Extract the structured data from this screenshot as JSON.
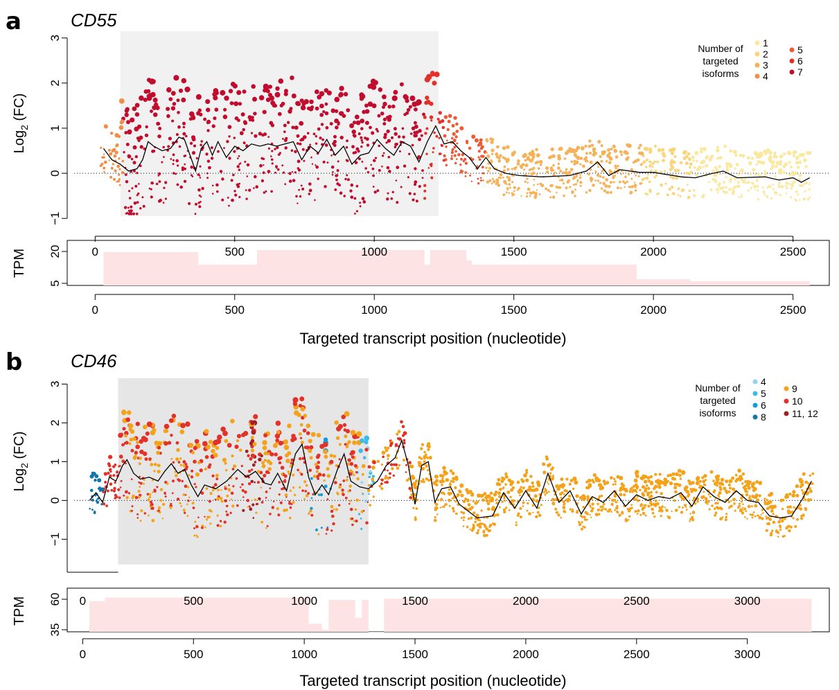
{
  "panels": [
    {
      "letter": "a",
      "gene": "CD55",
      "ylabel_main": "Log",
      "ylabel_sub": "2",
      "ylabel_tail": " (FC)",
      "tpm_label": "TPM",
      "xlabel": "Targeted transcript position (nucleotide)",
      "legend": {
        "title": [
          "Number of",
          "targeted",
          "isoforms"
        ],
        "items": [
          {
            "label": "1",
            "color": "#FBE8A0"
          },
          {
            "label": "2",
            "color": "#F9D57C"
          },
          {
            "label": "3",
            "color": "#F6B25A"
          },
          {
            "label": "4",
            "color": "#F08D47"
          },
          {
            "label": "5",
            "color": "#EC5B36"
          },
          {
            "label": "6",
            "color": "#E23128"
          },
          {
            "label": "7",
            "color": "#C10C2E"
          }
        ]
      }
    },
    {
      "letter": "b",
      "gene": "CD46",
      "ylabel_main": "Log",
      "ylabel_sub": "2",
      "ylabel_tail": " (FC)",
      "tpm_label": "TPM",
      "xlabel": "Targeted transcript position (nucleotide)",
      "legend": {
        "title": [
          "Number of",
          "targeted",
          "isoforms"
        ],
        "items": [
          {
            "label": "4",
            "color": "#8ED3F0"
          },
          {
            "label": "5",
            "color": "#3DBBE8"
          },
          {
            "label": "6",
            "color": "#119AD3"
          },
          {
            "label": "8",
            "color": "#1276A8"
          },
          {
            "label": "9",
            "color": "#F3A21A"
          },
          {
            "label": "10",
            "color": "#E23128"
          },
          {
            "label": "11, 12",
            "color": "#A21F24"
          }
        ]
      }
    }
  ],
  "chart_data": [
    {
      "type": "scatter",
      "title": "CD55",
      "xlabel": "Targeted transcript position (nucleotide)",
      "ylabel": "Log2 (FC)",
      "xlim": [
        -100,
        2630
      ],
      "ylim": [
        -1.15,
        3.15
      ],
      "xticks": [
        0,
        500,
        1000,
        1500,
        2000,
        2500
      ],
      "yticks": [
        -1,
        0,
        1,
        2,
        3
      ],
      "grid": false,
      "reference_line": {
        "y": 0,
        "style": "dotted"
      },
      "highlight_region": {
        "x": [
          90,
          1230
        ],
        "color": "#F1F1F1"
      },
      "legend_title": "Number of targeted isoforms",
      "legend_position": "top-right",
      "series": [
        {
          "name": "7",
          "color": "#C10C2E",
          "x_range": [
            100,
            1180
          ]
        },
        {
          "name": "6",
          "color": "#E23128",
          "x_range": [
            1180,
            1250
          ]
        },
        {
          "name": "5",
          "color": "#EC5B36",
          "x_range": [
            1250,
            1400
          ]
        },
        {
          "name": "4",
          "color": "#F08D47",
          "x_range": [
            20,
            100
          ]
        },
        {
          "name": "3",
          "color": "#F6B25A",
          "x_range": [
            1400,
            1960
          ]
        },
        {
          "name": "2",
          "color": "#F9D57C",
          "x_range": [
            1960,
            2140
          ]
        },
        {
          "name": "1",
          "color": "#FBE8A0",
          "x_range": [
            2140,
            2560
          ]
        }
      ],
      "trend": {
        "x": [
          30,
          60,
          90,
          120,
          150,
          170,
          190,
          210,
          240,
          270,
          300,
          320,
          340,
          360,
          380,
          400,
          420,
          440,
          470,
          500,
          530,
          560,
          590,
          620,
          650,
          680,
          710,
          740,
          770,
          800,
          830,
          860,
          890,
          920,
          950,
          980,
          1010,
          1040,
          1070,
          1100,
          1130,
          1160,
          1190,
          1220,
          1250,
          1280,
          1310,
          1340,
          1370,
          1400,
          1430,
          1470,
          1520,
          1600,
          1700,
          1760,
          1800,
          1840,
          1880,
          1950,
          2000,
          2100,
          2150,
          2200,
          2250,
          2300,
          2400,
          2450,
          2500,
          2530,
          2560
        ],
        "y": [
          0.55,
          0.3,
          0.2,
          0.05,
          0.1,
          0.3,
          0.7,
          0.6,
          0.5,
          0.55,
          0.8,
          0.75,
          0.4,
          0.05,
          0.55,
          0.7,
          0.4,
          0.7,
          0.35,
          0.6,
          0.5,
          0.65,
          0.6,
          0.65,
          0.6,
          0.65,
          0.7,
          0.3,
          0.6,
          0.45,
          0.75,
          0.4,
          0.6,
          0.2,
          0.4,
          0.45,
          0.75,
          0.55,
          0.4,
          0.7,
          0.6,
          0.25,
          0.7,
          1.05,
          0.65,
          0.7,
          0.5,
          0.35,
          0.1,
          0.35,
          0.1,
          0.0,
          -0.05,
          -0.08,
          -0.05,
          0.05,
          0.25,
          -0.05,
          0.08,
          0.02,
          0.02,
          -0.08,
          -0.1,
          -0.02,
          0.05,
          -0.1,
          -0.08,
          -0.15,
          -0.1,
          -0.2,
          -0.1
        ]
      },
      "tpm_track": {
        "ylabel": "TPM",
        "yticks": [
          5,
          20
        ],
        "xticks": [
          0,
          500,
          1000,
          1500,
          2000,
          2500
        ],
        "color": "#FDE3E3",
        "steps": [
          [
            30,
            20
          ],
          [
            370,
            20
          ],
          [
            370,
            14
          ],
          [
            580,
            14
          ],
          [
            580,
            21
          ],
          [
            1180,
            21
          ],
          [
            1180,
            14
          ],
          [
            1200,
            14
          ],
          [
            1200,
            21
          ],
          [
            1330,
            21
          ],
          [
            1330,
            16
          ],
          [
            1350,
            16
          ],
          [
            1350,
            14
          ],
          [
            1940,
            14
          ],
          [
            1940,
            7
          ],
          [
            2130,
            7
          ],
          [
            2130,
            6
          ],
          [
            2560,
            6
          ]
        ]
      }
    },
    {
      "type": "scatter",
      "title": "CD46",
      "xlabel": "Targeted transcript position (nucleotide)",
      "ylabel": "Log2 (FC)",
      "xlim": [
        -70,
        3370
      ],
      "ylim": [
        -1.85,
        3.15
      ],
      "xticks": [
        0,
        500,
        1000,
        1500,
        2000,
        2500,
        3000
      ],
      "yticks": [
        -1,
        0,
        1,
        2,
        3
      ],
      "grid": false,
      "reference_line": {
        "y": 0,
        "style": "dotted"
      },
      "highlight_region": {
        "x": [
          160,
          1290
        ],
        "color": "#E6E6E6"
      },
      "legend_title": "Number of targeted isoforms",
      "legend_position": "top-right",
      "series": [
        {
          "name": "8",
          "color": "#1276A8",
          "x_range": [
            30,
            90
          ]
        },
        {
          "name": "10",
          "color": "#E23128",
          "x_range": [
            90,
            1480
          ]
        },
        {
          "name": "9",
          "color": "#F3A21A",
          "x_range": [
            180,
            3300
          ]
        },
        {
          "name": "11, 12",
          "color": "#A21F24",
          "x_range": [
            720,
            820
          ]
        },
        {
          "name": "6",
          "color": "#119AD3",
          "x_range": [
            1030,
            1120
          ]
        },
        {
          "name": "5",
          "color": "#3DBBE8",
          "x_range": [
            1230,
            1320
          ]
        },
        {
          "name": "4",
          "color": "#8ED3F0",
          "x_range": [
            1260,
            1300
          ]
        }
      ],
      "trend": {
        "x": [
          30,
          60,
          90,
          120,
          150,
          180,
          200,
          230,
          260,
          300,
          340,
          370,
          400,
          430,
          460,
          490,
          520,
          550,
          600,
          650,
          700,
          740,
          780,
          820,
          850,
          880,
          920,
          960,
          990,
          1020,
          1050,
          1080,
          1110,
          1150,
          1180,
          1210,
          1250,
          1290,
          1330,
          1370,
          1410,
          1440,
          1470,
          1500,
          1530,
          1560,
          1590,
          1620,
          1660,
          1700,
          1780,
          1850,
          1900,
          1950,
          2000,
          2050,
          2100,
          2150,
          2200,
          2250,
          2300,
          2350,
          2400,
          2450,
          2500,
          2550,
          2600,
          2650,
          2700,
          2750,
          2800,
          2850,
          2900,
          2950,
          3000,
          3050,
          3100,
          3150,
          3200,
          3250,
          3290
        ],
        "y": [
          0.0,
          0.2,
          -0.05,
          0.6,
          0.5,
          0.9,
          1.05,
          0.7,
          0.55,
          0.6,
          0.5,
          0.75,
          0.95,
          0.7,
          0.8,
          0.4,
          0.1,
          0.4,
          0.3,
          0.5,
          0.8,
          0.6,
          0.75,
          0.45,
          0.4,
          0.7,
          0.25,
          1.2,
          1.45,
          0.6,
          0.15,
          0.4,
          0.15,
          0.8,
          1.2,
          0.5,
          0.35,
          0.3,
          0.5,
          0.9,
          1.1,
          1.55,
          0.9,
          -0.1,
          0.9,
          1.0,
          -0.05,
          0.3,
          0.35,
          -0.1,
          -0.45,
          -0.4,
          0.2,
          -0.2,
          0.25,
          -0.2,
          0.7,
          -0.05,
          0.25,
          -0.35,
          0.1,
          -0.05,
          0.25,
          -0.15,
          0.15,
          0.0,
          0.1,
          0.05,
          0.2,
          -0.15,
          0.35,
          0.1,
          -0.05,
          0.25,
          0.0,
          -0.05,
          -0.4,
          -0.45,
          -0.4,
          0.05,
          0.5
        ]
      },
      "tpm_track": {
        "ylabel": "TPM",
        "yticks": [
          35,
          60
        ],
        "xticks": [
          0,
          500,
          1000,
          1500,
          2000,
          2500,
          3000
        ],
        "color": "#FDE3E3",
        "steps": [
          [
            30,
            59
          ],
          [
            100,
            59
          ],
          [
            100,
            62
          ],
          [
            1020,
            62
          ],
          [
            1020,
            40
          ],
          [
            1080,
            40
          ],
          [
            1080,
            35
          ],
          [
            1110,
            35
          ],
          [
            1110,
            60
          ],
          [
            1230,
            60
          ],
          [
            1230,
            45
          ],
          [
            1260,
            45
          ],
          [
            1260,
            60
          ],
          [
            1290,
            60
          ],
          [
            1290,
            33
          ],
          [
            1360,
            33
          ],
          [
            1360,
            61
          ],
          [
            3290,
            61
          ]
        ]
      }
    }
  ]
}
